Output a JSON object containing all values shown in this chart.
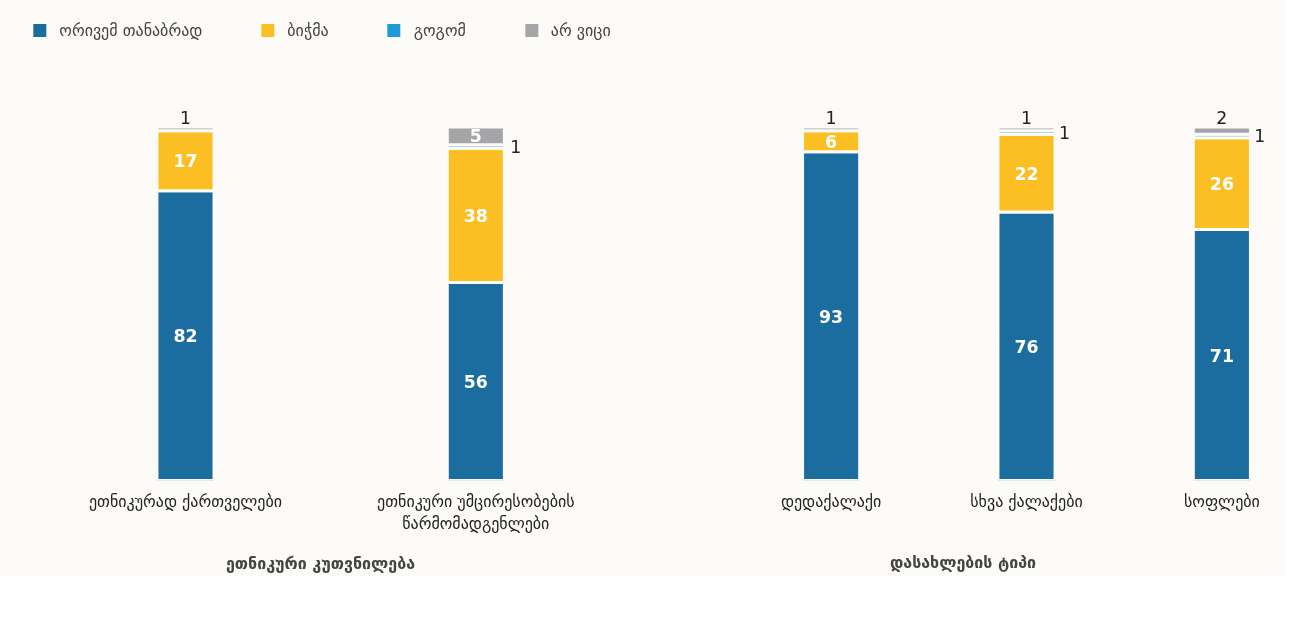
{
  "chart_data": [
    {
      "type": "bar",
      "stacked": true,
      "xlabel": "ეთნიკური კუთვნილება",
      "categories": [
        "ეთნიკურად ქართველები",
        "ეთნიკური უმცირესობების წარმომადგენლები"
      ],
      "tick_labels": "x",
      "data_labels": true,
      "legend": "top",
      "grid": false,
      "series": [
        {
          "name": "ორივემ თანაბრად",
          "color": "#1c6d9f",
          "values": [
            82,
            56
          ]
        },
        {
          "name": "ბიჭმა",
          "color": "#fbbf24",
          "values": [
            17,
            38
          ]
        },
        {
          "name": "გოგომ",
          "color": "#1f9ad6",
          "values": [
            null,
            1
          ]
        },
        {
          "name": "არ ვიცი",
          "color": "#a5a5a8",
          "values": [
            1,
            5
          ]
        }
      ]
    },
    {
      "type": "bar",
      "stacked": true,
      "xlabel": "დასახლების ტიპი",
      "categories": [
        "დედაქალაქი",
        "სხვა ქალაქები",
        "სოფლები"
      ],
      "tick_labels": "x",
      "data_labels": true,
      "grid": false,
      "series": [
        {
          "color": "#1c6d9f",
          "values": [
            93,
            76,
            71
          ]
        },
        {
          "color": "#fbbf24",
          "values": [
            6,
            22,
            26
          ]
        },
        {
          "color": "#1f9ad6",
          "values": [
            null,
            1,
            1
          ]
        },
        {
          "color": "#a5a5a8",
          "values": [
            1,
            1,
            2
          ]
        }
      ]
    }
  ]
}
